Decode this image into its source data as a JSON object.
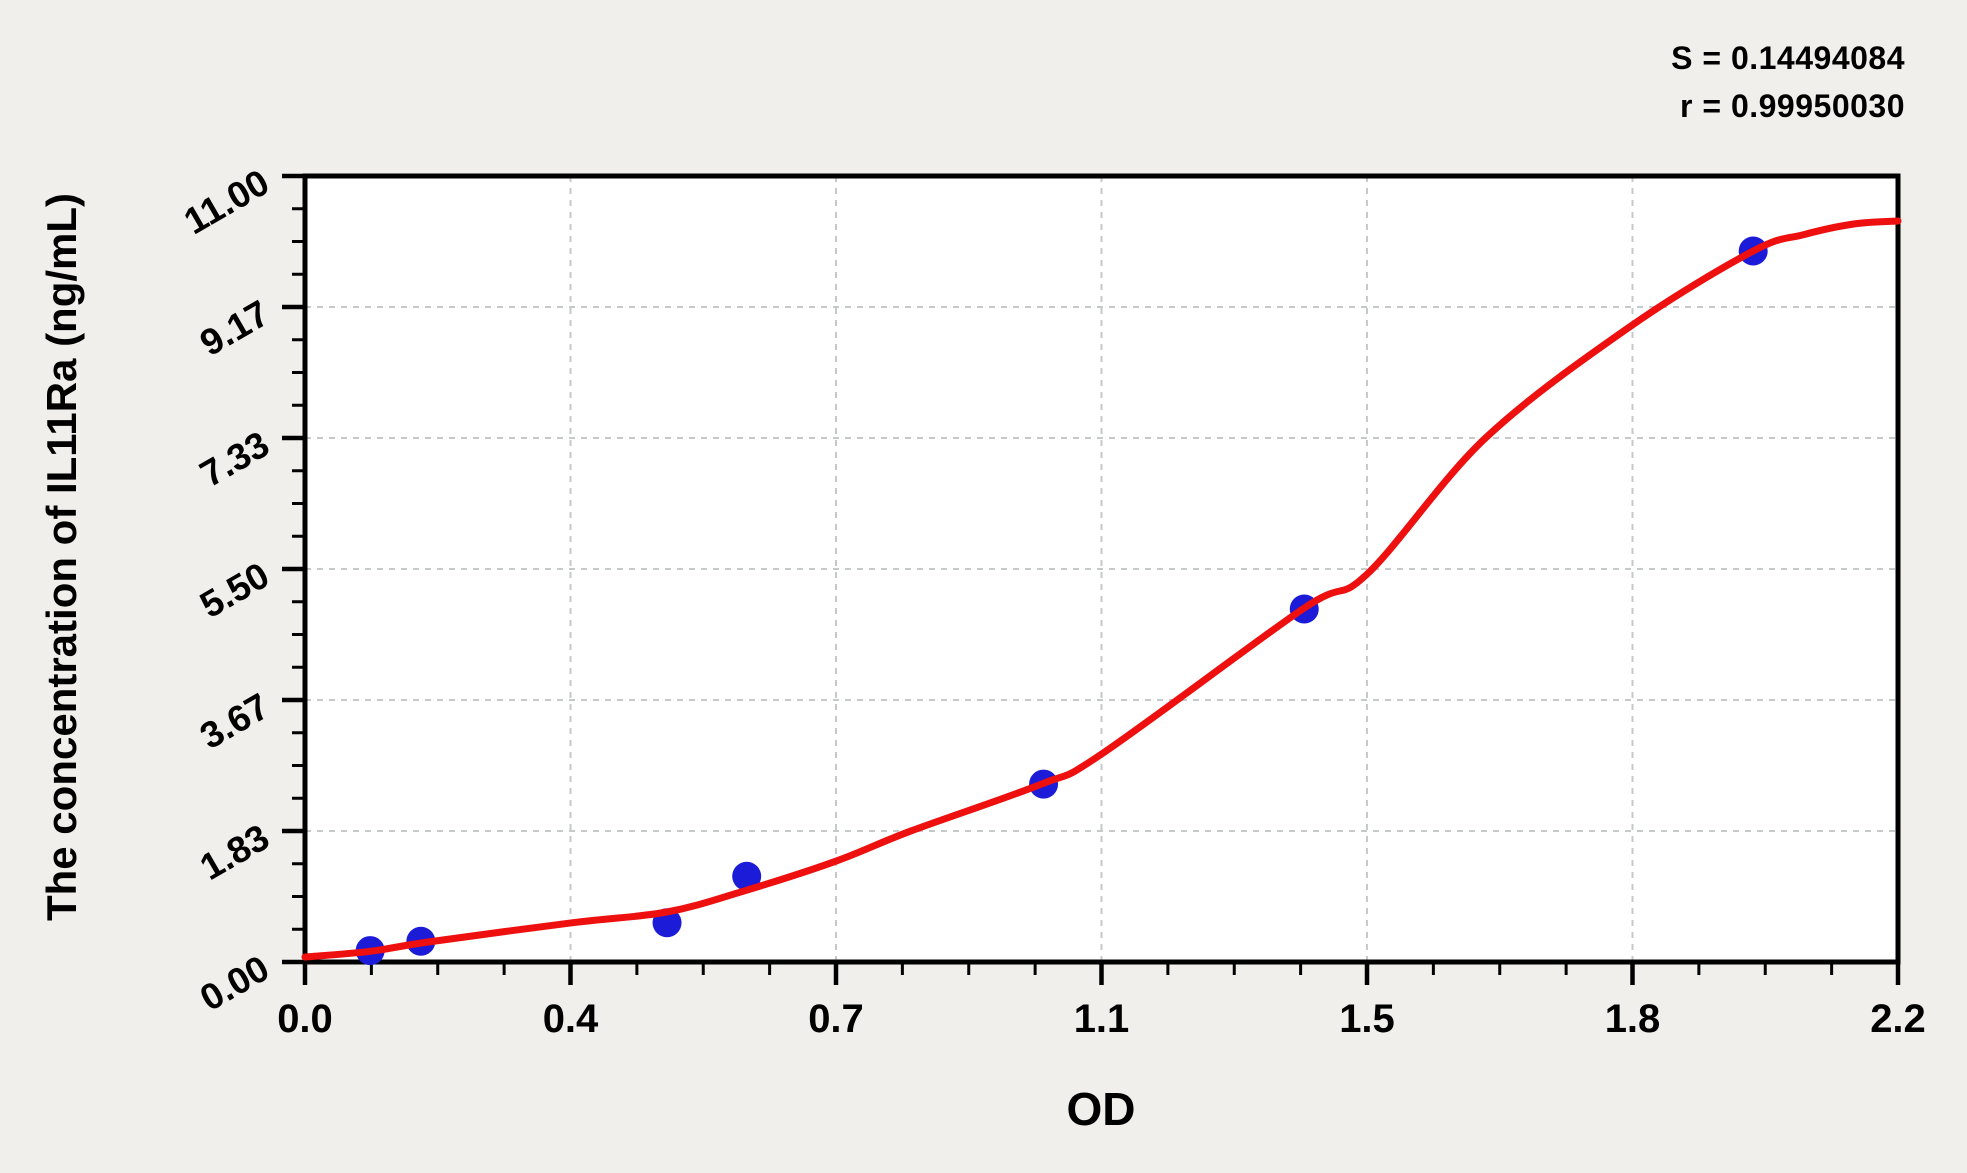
{
  "chart_data": {
    "type": "scatter",
    "title": "",
    "xlabel": "OD",
    "ylabel": "The concentration of IL11Ra (ng/mL)",
    "stats": {
      "s_line": "S = 0.14494084",
      "r_line": "r = 0.99950030",
      "S": 0.14494084,
      "r": 0.9995003
    },
    "x_axis": {
      "min": 0,
      "max": 2.2,
      "tick_labels": [
        "0.0",
        "0.4",
        "0.7",
        "1.1",
        "1.5",
        "1.8",
        "2.2"
      ],
      "minor_divisions": 4
    },
    "y_axis": {
      "min": 0,
      "max": 11,
      "tick_labels": [
        "0.00",
        "1.83",
        "3.67",
        "5.50",
        "7.33",
        "9.17",
        "11.00"
      ],
      "minor_divisions": 4
    },
    "grid": true,
    "legend": null,
    "series": [
      {
        "name": "standard-points",
        "type": "scatter",
        "color": "#1b1bd8",
        "points": [
          {
            "od": 0.09,
            "conc": 0.16
          },
          {
            "od": 0.16,
            "conc": 0.29
          },
          {
            "od": 0.5,
            "conc": 0.55
          },
          {
            "od": 0.61,
            "conc": 1.2
          },
          {
            "od": 1.02,
            "conc": 2.49
          },
          {
            "od": 1.38,
            "conc": 4.94
          },
          {
            "od": 2.0,
            "conc": 9.95
          }
        ]
      },
      {
        "name": "fitted-curve",
        "type": "line",
        "color": "#ee0f0f",
        "points": [
          [
            0.0,
            0.07
          ],
          [
            0.09,
            0.15
          ],
          [
            0.17,
            0.28
          ],
          [
            0.37,
            0.55
          ],
          [
            0.5,
            0.7
          ],
          [
            0.605,
            0.99
          ],
          [
            0.733,
            1.41
          ],
          [
            0.836,
            1.83
          ],
          [
            1.017,
            2.49
          ],
          [
            1.1,
            2.91
          ],
          [
            1.378,
            4.94
          ],
          [
            1.467,
            5.43
          ],
          [
            1.63,
            7.33
          ],
          [
            1.831,
            8.9
          ],
          [
            2.0,
            9.95
          ],
          [
            2.07,
            10.18
          ],
          [
            2.14,
            10.33
          ],
          [
            2.2,
            10.37
          ]
        ]
      }
    ],
    "colors": {
      "page_bg": "#f0efec",
      "plot_bg": "#ffffff",
      "axis": "#000000",
      "grid": "#c6c9ca",
      "point": "#1b1bd8",
      "curve": "#ee0f0f",
      "text": "#000000"
    }
  }
}
